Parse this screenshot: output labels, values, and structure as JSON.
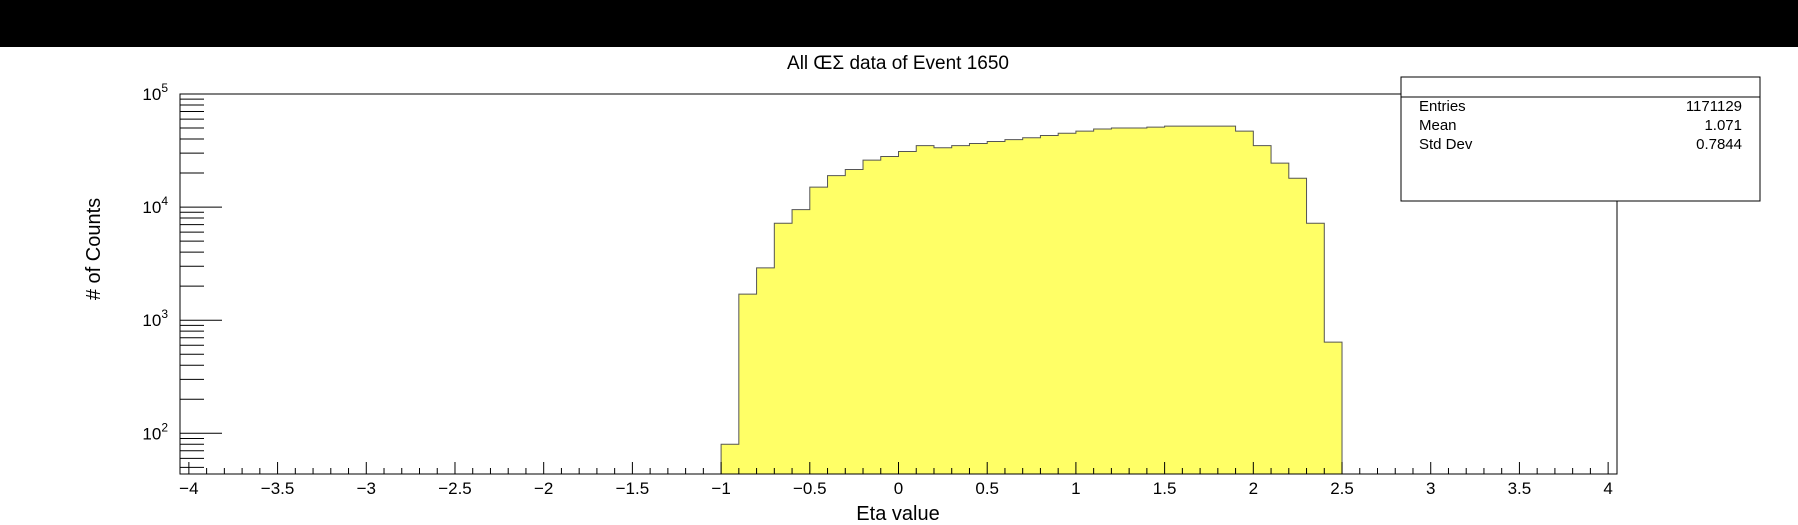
{
  "chart_data": {
    "type": "bar",
    "title": "All ŒΣ data of Event 1650",
    "xlabel": "Eta value",
    "ylabel": "# of Counts",
    "xlim": [
      -4.05,
      4.05
    ],
    "ylim_log10": [
      1.64,
      5.0
    ],
    "x_tick_labels": [
      "-4",
      "-3.5",
      "-3",
      "-2.5",
      "-2",
      "-1.5",
      "-1",
      "-0.5",
      "0",
      "0.5",
      "1",
      "1.5",
      "2",
      "2.5",
      "3",
      "3.5",
      "4"
    ],
    "y_tick_labels": [
      {
        "base": "10",
        "exp": "2"
      },
      {
        "base": "10",
        "exp": "3"
      },
      {
        "base": "10",
        "exp": "4"
      },
      {
        "base": "10",
        "exp": "5"
      }
    ],
    "bin_width": 0.1,
    "bin_edges_start": -1.0,
    "bin_values": [
      80,
      1700,
      2900,
      7200,
      9500,
      15000,
      19000,
      21500,
      26000,
      28000,
      31000,
      35000,
      33500,
      35000,
      36500,
      38000,
      39500,
      41000,
      43000,
      45000,
      47000,
      49000,
      50000,
      50000,
      51000,
      52000,
      52000,
      52000,
      52000,
      47000,
      35000,
      24500,
      18000,
      7200,
      640
    ],
    "fill_color": "#ffff66",
    "stats": {
      "title": "",
      "rows": [
        {
          "label": "Entries",
          "value": "1171129"
        },
        {
          "label": "Mean",
          "value": "1.071"
        },
        {
          "label": "Std Dev",
          "value": "0.7844"
        }
      ]
    }
  }
}
